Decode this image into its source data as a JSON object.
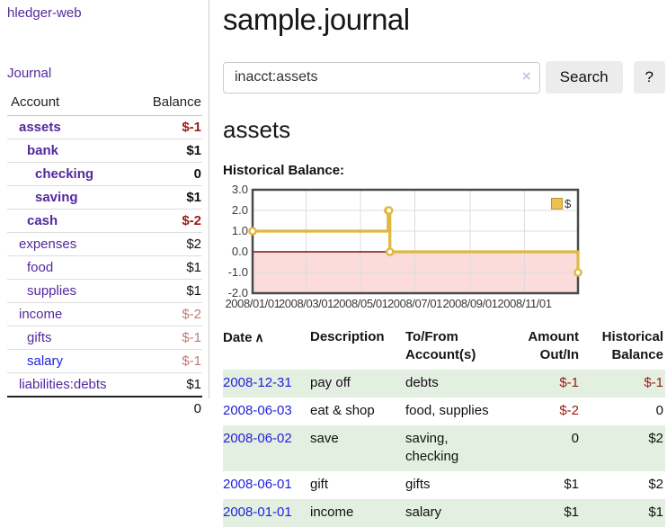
{
  "page": {
    "title": "sample.journal"
  },
  "sidebar": {
    "brand": "hledger-web",
    "journal_link": "Journal",
    "accounts_table": {
      "headers": {
        "account": "Account",
        "balance": "Balance"
      },
      "rows": [
        {
          "name": "assets",
          "balance": "$-1",
          "level": 0,
          "bold": true,
          "balance_class": "neg-strong",
          "name_class": "plink"
        },
        {
          "name": "bank",
          "balance": "$1",
          "level": 1,
          "bold": true,
          "balance_class": "",
          "name_class": "plink"
        },
        {
          "name": "checking",
          "balance": "0",
          "level": 2,
          "bold": true,
          "balance_class": "",
          "name_class": "plink"
        },
        {
          "name": "saving",
          "balance": "$1",
          "level": 2,
          "bold": true,
          "balance_class": "",
          "name_class": "plink"
        },
        {
          "name": "cash",
          "balance": "$-2",
          "level": 1,
          "bold": true,
          "balance_class": "neg-strong",
          "name_class": "plink"
        },
        {
          "name": "expenses",
          "balance": "$2",
          "level": 0,
          "bold": false,
          "balance_class": "",
          "name_class": "plink"
        },
        {
          "name": "food",
          "balance": "$1",
          "level": 1,
          "bold": false,
          "balance_class": "",
          "name_class": "plink"
        },
        {
          "name": "supplies",
          "balance": "$1",
          "level": 1,
          "bold": false,
          "balance_class": "",
          "name_class": "plink"
        },
        {
          "name": "income",
          "balance": "$-2",
          "level": 0,
          "bold": false,
          "balance_class": "neg-muted",
          "name_class": "plink"
        },
        {
          "name": "gifts",
          "balance": "$-1",
          "level": 1,
          "bold": false,
          "balance_class": "neg-muted",
          "name_class": "plink"
        },
        {
          "name": "salary",
          "balance": "$-1",
          "level": 1,
          "bold": false,
          "balance_class": "neg-muted",
          "name_class": "blink"
        },
        {
          "name": "liabilities:debts",
          "balance": "$1",
          "level": 0,
          "bold": false,
          "balance_class": "",
          "name_class": "plink"
        }
      ],
      "total": "0"
    }
  },
  "search": {
    "value": "inacct:assets",
    "clear_icon": "×",
    "button_label": "Search",
    "help_label": "?"
  },
  "account_view": {
    "heading": "assets",
    "chart_label": "Historical Balance:"
  },
  "chart_data": {
    "type": "line",
    "step": true,
    "title": "Historical Balance",
    "x_start": "2008-01-01",
    "x_span_days": 365,
    "x_ticks": [
      "2008/01/01",
      "2008/03/01",
      "2008/05/01",
      "2008/07/01",
      "2008/09/01",
      "2008/11/01"
    ],
    "y_ticks": [
      "3.0",
      "2.0",
      "1.0",
      "0.0",
      "-1.0",
      "-2.0"
    ],
    "ylim": [
      -2,
      3
    ],
    "grid": true,
    "legend_position": "top-right",
    "series": [
      {
        "name": "$",
        "color": "#e0b83f",
        "points": [
          [
            "2008-01-01",
            1
          ],
          [
            "2008-06-01",
            2
          ],
          [
            "2008-06-02",
            2
          ],
          [
            "2008-06-03",
            0
          ],
          [
            "2008-12-31",
            -1
          ]
        ]
      }
    ],
    "colors": {
      "grid_line": "#dcdcdc",
      "zero_line": "#7d1414",
      "negative_region_fill": "#fcdbdb",
      "plot_border": "#4a4a4a",
      "marker_fill": "#ffffff"
    }
  },
  "register": {
    "headers": {
      "date": "Date",
      "description": "Description",
      "accounts": "To/From Account(s)",
      "amount": "Amount Out/In",
      "balance": "Historical Balance"
    },
    "sort_icon": "∧",
    "rows": [
      {
        "date": "2008-12-31",
        "description": "pay off",
        "accounts": "debts",
        "amount": "$-1",
        "balance": "$-1",
        "amount_neg": true,
        "balance_neg": true
      },
      {
        "date": "2008-06-03",
        "description": "eat & shop",
        "accounts": "food, supplies",
        "amount": "$-2",
        "balance": "0",
        "amount_neg": true,
        "balance_neg": false
      },
      {
        "date": "2008-06-02",
        "description": "save",
        "accounts": "saving,\nchecking",
        "amount": "0",
        "balance": "$2",
        "amount_neg": false,
        "balance_neg": false
      },
      {
        "date": "2008-06-01",
        "description": "gift",
        "accounts": "gifts",
        "amount": "$1",
        "balance": "$2",
        "amount_neg": false,
        "balance_neg": false
      },
      {
        "date": "2008-01-01",
        "description": "income",
        "accounts": "salary",
        "amount": "$1",
        "balance": "$1",
        "amount_neg": false,
        "balance_neg": false
      }
    ]
  },
  "colors": {
    "accent_purple": "#54289e",
    "link_blue": "#2222dd",
    "negative_strong": "#9a1b15",
    "negative_muted": "#c47a74",
    "row_green": "#e3efe0",
    "chart_gold": "#e0b83f"
  }
}
